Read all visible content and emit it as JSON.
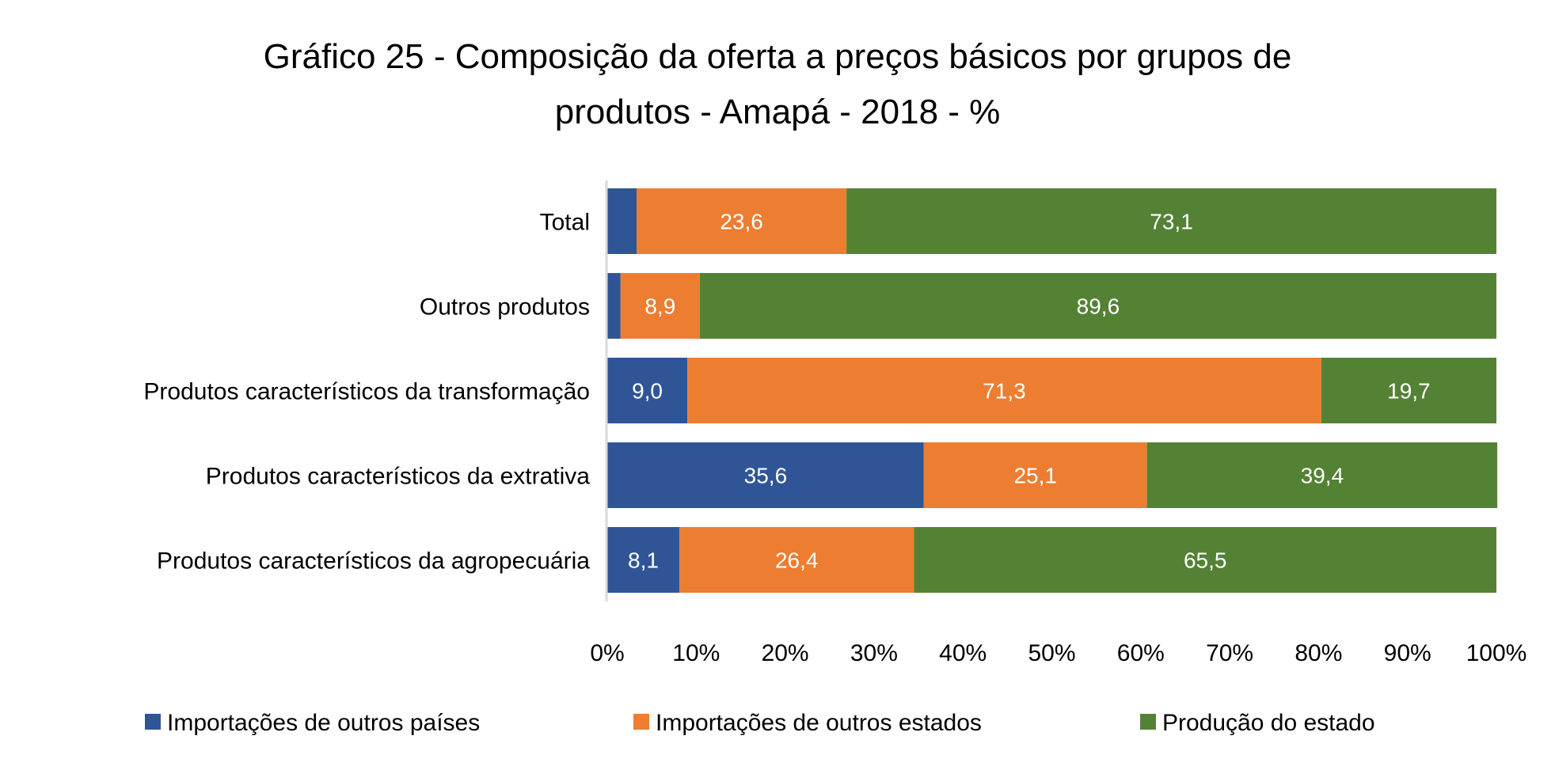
{
  "chart_data": {
    "type": "bar",
    "orientation": "horizontal",
    "stacked": "percent",
    "title": [
      "Gráfico 25 - Composição da oferta a preços básicos por grupos de",
      "produtos - Amapá - 2018 - %"
    ],
    "categories": [
      "Total",
      "Outros produtos",
      "Produtos característicos da transformação",
      "Produtos característicos da extrativa",
      "Produtos característicos da agropecuária"
    ],
    "series": [
      {
        "name": "Importações de outros países",
        "color": "#2F5597",
        "values": [
          3.3,
          1.5,
          9.0,
          35.6,
          8.1
        ],
        "labels": [
          "",
          "",
          "9,0",
          "35,6",
          "8,1"
        ]
      },
      {
        "name": "Importações de outros estados",
        "color": "#ED7D31",
        "values": [
          23.6,
          8.9,
          71.3,
          25.1,
          26.4
        ],
        "labels": [
          "23,6",
          "8,9",
          "71,3",
          "25,1",
          "26,4"
        ]
      },
      {
        "name": "Produção do estado",
        "color": "#548235",
        "values": [
          73.1,
          89.6,
          19.7,
          39.4,
          65.5
        ],
        "labels": [
          "73,1",
          "89,6",
          "19,7",
          "39,4",
          "65,5"
        ]
      }
    ],
    "xticks": [
      "0%",
      "10%",
      "20%",
      "30%",
      "40%",
      "50%",
      "60%",
      "70%",
      "80%",
      "90%",
      "100%"
    ],
    "xlim": [
      0,
      100
    ],
    "grid": false,
    "legend": "bottom"
  }
}
